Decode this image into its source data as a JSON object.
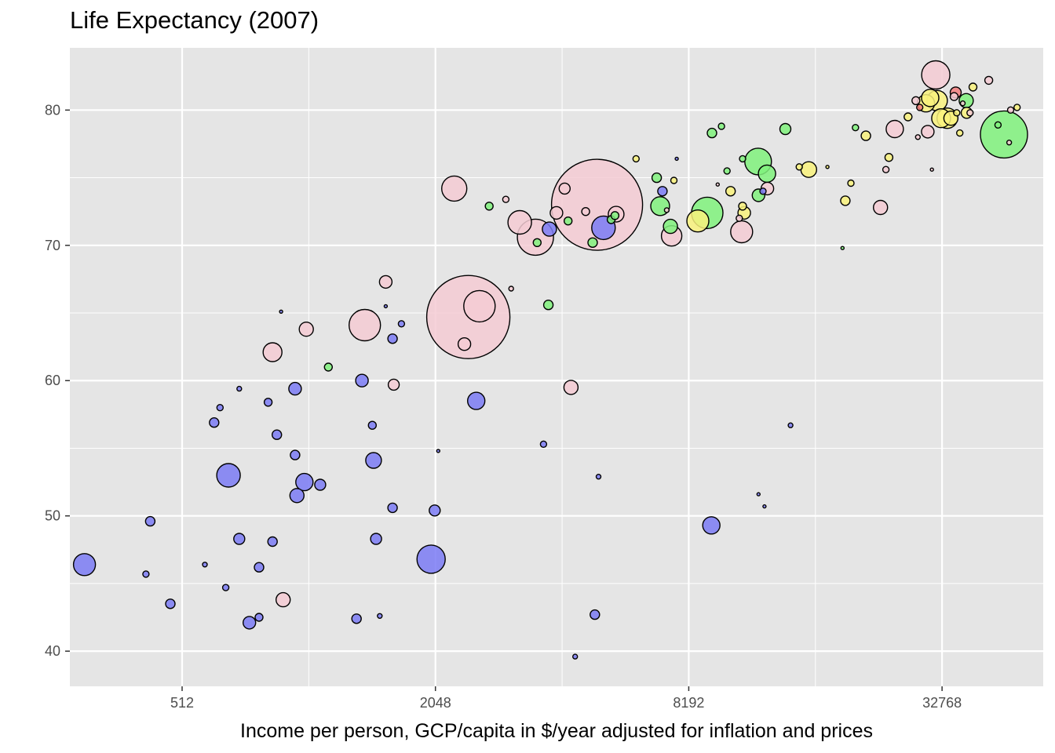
{
  "chart_data": {
    "type": "scatter",
    "title": "Life Expectancy (2007)",
    "xlabel": "Income per person, GCP/capita in $/year adjusted for inflation and prices",
    "ylabel": "",
    "x_scale": "log2",
    "xlim": [
      277,
      57000
    ],
    "ylim": [
      37.4,
      84.6
    ],
    "x_ticks": [
      512,
      2048,
      8192,
      32768
    ],
    "x_tick_labels": [
      "512",
      "2048",
      "8192",
      "32768"
    ],
    "y_ticks": [
      40,
      50,
      60,
      70,
      80
    ],
    "y_tick_labels": [
      "40",
      "50",
      "60",
      "70",
      "80"
    ],
    "grid": true,
    "legend": "none",
    "colors": {
      "panel": "#e5e5e5",
      "grid": "#ffffff",
      "blue": "#7b7bf4",
      "pink": "#f4cbd3",
      "green": "#80f27c",
      "yellow": "#f9f27c",
      "red": "#f27c7c",
      "stroke": "#000000"
    },
    "points": [
      {
        "x": 4959,
        "y": 73.0,
        "r": 58,
        "color": "pink"
      },
      {
        "x": 2452,
        "y": 64.7,
        "r": 53,
        "color": "pink"
      },
      {
        "x": 2606,
        "y": 65.5,
        "r": 20,
        "color": "pink"
      },
      {
        "x": 2270,
        "y": 74.2,
        "r": 16,
        "color": "pink"
      },
      {
        "x": 1391,
        "y": 64.1,
        "r": 20,
        "color": "pink"
      },
      {
        "x": 3249,
        "y": 71.7,
        "r": 15,
        "color": "pink"
      },
      {
        "x": 3540,
        "y": 70.6,
        "r": 23,
        "color": "pink"
      },
      {
        "x": 31656,
        "y": 82.6,
        "r": 18,
        "color": "pink"
      },
      {
        "x": 45981,
        "y": 78.2,
        "r": 30,
        "color": "green"
      },
      {
        "x": 11977,
        "y": 76.2,
        "r": 17,
        "color": "green"
      },
      {
        "x": 9066,
        "y": 72.4,
        "r": 20,
        "color": "green"
      },
      {
        "x": 7006,
        "y": 72.9,
        "r": 12,
        "color": "green"
      },
      {
        "x": 8610,
        "y": 71.8,
        "r": 14,
        "color": "yellow"
      },
      {
        "x": 12569,
        "y": 75.3,
        "r": 11,
        "color": "green"
      },
      {
        "x": 10943,
        "y": 71.0,
        "r": 14,
        "color": "pink"
      },
      {
        "x": 7458,
        "y": 70.7,
        "r": 13,
        "color": "pink"
      },
      {
        "x": 5137,
        "y": 71.3,
        "r": 15,
        "color": "blue"
      },
      {
        "x": 5505,
        "y": 72.3,
        "r": 10,
        "color": "pink"
      },
      {
        "x": 4153,
        "y": 74.2,
        "r": 7,
        "color": "pink"
      },
      {
        "x": 3822,
        "y": 71.2,
        "r": 9,
        "color": "blue"
      },
      {
        "x": 3971,
        "y": 72.4,
        "r": 8,
        "color": "pink"
      },
      {
        "x": 4660,
        "y": 72.5,
        "r": 5,
        "color": "pink"
      },
      {
        "x": 4232,
        "y": 71.8,
        "r": 5,
        "color": "green"
      },
      {
        "x": 4841,
        "y": 70.2,
        "r": 6,
        "color": "green"
      },
      {
        "x": 3574,
        "y": 70.2,
        "r": 5,
        "color": "green"
      },
      {
        "x": 2749,
        "y": 72.9,
        "r": 5,
        "color": "green"
      },
      {
        "x": 3010,
        "y": 73.4,
        "r": 4,
        "color": "pink"
      },
      {
        "x": 5359,
        "y": 71.9,
        "r": 5,
        "color": "green"
      },
      {
        "x": 5470,
        "y": 72.2,
        "r": 5,
        "color": "green"
      },
      {
        "x": 6875,
        "y": 75.0,
        "r": 6,
        "color": "green"
      },
      {
        "x": 7093,
        "y": 74.0,
        "r": 6,
        "color": "blue"
      },
      {
        "x": 7410,
        "y": 71.4,
        "r": 9,
        "color": "green"
      },
      {
        "x": 7553,
        "y": 74.8,
        "r": 4,
        "color": "yellow"
      },
      {
        "x": 7670,
        "y": 76.4,
        "r": 2,
        "color": "blue"
      },
      {
        "x": 6140,
        "y": 76.4,
        "r": 4,
        "color": "yellow"
      },
      {
        "x": 7262,
        "y": 72.6,
        "r": 3,
        "color": "pink"
      },
      {
        "x": 9300,
        "y": 78.3,
        "r": 6,
        "color": "green"
      },
      {
        "x": 9800,
        "y": 78.8,
        "r": 4,
        "color": "green"
      },
      {
        "x": 9600,
        "y": 74.5,
        "r": 2,
        "color": "pink"
      },
      {
        "x": 10100,
        "y": 75.5,
        "r": 4,
        "color": "green"
      },
      {
        "x": 11000,
        "y": 76.4,
        "r": 4,
        "color": "green"
      },
      {
        "x": 10300,
        "y": 74.0,
        "r": 6,
        "color": "yellow"
      },
      {
        "x": 11000,
        "y": 72.9,
        "r": 5,
        "color": "yellow"
      },
      {
        "x": 11100,
        "y": 72.4,
        "r": 8,
        "color": "yellow"
      },
      {
        "x": 10800,
        "y": 72.0,
        "r": 4,
        "color": "pink"
      },
      {
        "x": 12000,
        "y": 73.7,
        "r": 8,
        "color": "green"
      },
      {
        "x": 12600,
        "y": 74.2,
        "r": 8,
        "color": "pink"
      },
      {
        "x": 12300,
        "y": 74.0,
        "r": 4,
        "color": "blue"
      },
      {
        "x": 13900,
        "y": 78.6,
        "r": 7,
        "color": "green"
      },
      {
        "x": 15000,
        "y": 75.8,
        "r": 4,
        "color": "yellow"
      },
      {
        "x": 15800,
        "y": 75.6,
        "r": 10,
        "color": "yellow"
      },
      {
        "x": 17500,
        "y": 75.8,
        "r": 2,
        "color": "yellow"
      },
      {
        "x": 19300,
        "y": 73.3,
        "r": 6,
        "color": "yellow"
      },
      {
        "x": 19900,
        "y": 74.6,
        "r": 4,
        "color": "yellow"
      },
      {
        "x": 20400,
        "y": 78.7,
        "r": 4,
        "color": "green"
      },
      {
        "x": 21600,
        "y": 78.1,
        "r": 6,
        "color": "yellow"
      },
      {
        "x": 23400,
        "y": 72.8,
        "r": 9,
        "color": "pink"
      },
      {
        "x": 24100,
        "y": 75.6,
        "r": 4,
        "color": "pink"
      },
      {
        "x": 24500,
        "y": 76.5,
        "r": 5,
        "color": "yellow"
      },
      {
        "x": 25300,
        "y": 78.6,
        "r": 11,
        "color": "pink"
      },
      {
        "x": 27200,
        "y": 79.5,
        "r": 5,
        "color": "yellow"
      },
      {
        "x": 28400,
        "y": 80.7,
        "r": 5,
        "color": "pink"
      },
      {
        "x": 29000,
        "y": 80.2,
        "r": 4,
        "color": "red"
      },
      {
        "x": 28700,
        "y": 78.0,
        "r": 3,
        "color": "pink"
      },
      {
        "x": 30300,
        "y": 78.4,
        "r": 8,
        "color": "pink"
      },
      {
        "x": 30000,
        "y": 80.5,
        "r": 11,
        "color": "yellow"
      },
      {
        "x": 30700,
        "y": 80.9,
        "r": 11,
        "color": "yellow"
      },
      {
        "x": 31900,
        "y": 80.7,
        "r": 13,
        "color": "yellow"
      },
      {
        "x": 31000,
        "y": 75.6,
        "r": 2,
        "color": "pink"
      },
      {
        "x": 32600,
        "y": 79.4,
        "r": 12,
        "color": "yellow"
      },
      {
        "x": 33700,
        "y": 79.4,
        "r": 13,
        "color": "yellow"
      },
      {
        "x": 34400,
        "y": 79.4,
        "r": 9,
        "color": "yellow"
      },
      {
        "x": 35000,
        "y": 81.0,
        "r": 5,
        "color": "pink"
      },
      {
        "x": 35300,
        "y": 81.3,
        "r": 7,
        "color": "red"
      },
      {
        "x": 35500,
        "y": 79.8,
        "r": 4,
        "color": "yellow"
      },
      {
        "x": 36100,
        "y": 78.3,
        "r": 4,
        "color": "yellow"
      },
      {
        "x": 36700,
        "y": 80.5,
        "r": 3,
        "color": "pink"
      },
      {
        "x": 37400,
        "y": 80.7,
        "r": 9,
        "color": "green"
      },
      {
        "x": 37500,
        "y": 79.8,
        "r": 7,
        "color": "yellow"
      },
      {
        "x": 38200,
        "y": 79.8,
        "r": 4,
        "color": "pink"
      },
      {
        "x": 38800,
        "y": 81.7,
        "r": 5,
        "color": "yellow"
      },
      {
        "x": 42300,
        "y": 82.2,
        "r": 5,
        "color": "pink"
      },
      {
        "x": 44500,
        "y": 78.9,
        "r": 4,
        "color": "green"
      },
      {
        "x": 47300,
        "y": 77.6,
        "r": 3,
        "color": "pink"
      },
      {
        "x": 47700,
        "y": 80.0,
        "r": 4,
        "color": "pink"
      },
      {
        "x": 49400,
        "y": 80.2,
        "r": 4,
        "color": "yellow"
      },
      {
        "x": 19000,
        "y": 69.8,
        "r": 2,
        "color": "green"
      },
      {
        "x": 14300,
        "y": 56.7,
        "r": 3,
        "color": "blue"
      },
      {
        "x": 9270,
        "y": 49.3,
        "r": 11,
        "color": "blue"
      },
      {
        "x": 12000,
        "y": 51.6,
        "r": 2,
        "color": "blue"
      },
      {
        "x": 12400,
        "y": 50.7,
        "r": 2,
        "color": "blue"
      },
      {
        "x": 5000,
        "y": 52.9,
        "r": 3,
        "color": "blue"
      },
      {
        "x": 4900,
        "y": 42.7,
        "r": 6,
        "color": "blue"
      },
      {
        "x": 4400,
        "y": 39.6,
        "r": 3,
        "color": "blue"
      },
      {
        "x": 4300,
        "y": 59.5,
        "r": 9,
        "color": "pink"
      },
      {
        "x": 3700,
        "y": 55.3,
        "r": 4,
        "color": "blue"
      },
      {
        "x": 3800,
        "y": 65.6,
        "r": 6,
        "color": "green"
      },
      {
        "x": 3100,
        "y": 66.8,
        "r": 3,
        "color": "pink"
      },
      {
        "x": 2560,
        "y": 58.5,
        "r": 11,
        "color": "blue"
      },
      {
        "x": 2400,
        "y": 62.7,
        "r": 8,
        "color": "pink"
      },
      {
        "x": 2080,
        "y": 54.8,
        "r": 2,
        "color": "blue"
      },
      {
        "x": 2040,
        "y": 50.4,
        "r": 7,
        "color": "blue"
      },
      {
        "x": 2000,
        "y": 46.8,
        "r": 18,
        "color": "blue"
      },
      {
        "x": 1630,
        "y": 59.7,
        "r": 7,
        "color": "pink"
      },
      {
        "x": 1620,
        "y": 63.1,
        "r": 6,
        "color": "blue"
      },
      {
        "x": 1700,
        "y": 64.2,
        "r": 4,
        "color": "blue"
      },
      {
        "x": 1560,
        "y": 67.3,
        "r": 8,
        "color": "pink"
      },
      {
        "x": 1560,
        "y": 65.5,
        "r": 2,
        "color": "blue"
      },
      {
        "x": 1620,
        "y": 50.6,
        "r": 6,
        "color": "blue"
      },
      {
        "x": 1480,
        "y": 48.3,
        "r": 7,
        "color": "blue"
      },
      {
        "x": 1510,
        "y": 42.6,
        "r": 3,
        "color": "blue"
      },
      {
        "x": 1450,
        "y": 56.7,
        "r": 5,
        "color": "blue"
      },
      {
        "x": 1460,
        "y": 54.1,
        "r": 10,
        "color": "blue"
      },
      {
        "x": 1370,
        "y": 60.0,
        "r": 8,
        "color": "blue"
      },
      {
        "x": 1330,
        "y": 42.4,
        "r": 6,
        "color": "blue"
      },
      {
        "x": 1140,
        "y": 61.0,
        "r": 5,
        "color": "green"
      },
      {
        "x": 1090,
        "y": 52.3,
        "r": 7,
        "color": "blue"
      },
      {
        "x": 1000,
        "y": 52.5,
        "r": 11,
        "color": "blue"
      },
      {
        "x": 1010,
        "y": 63.8,
        "r": 9,
        "color": "pink"
      },
      {
        "x": 960,
        "y": 51.5,
        "r": 9,
        "color": "blue"
      },
      {
        "x": 950,
        "y": 54.5,
        "r": 6,
        "color": "blue"
      },
      {
        "x": 950,
        "y": 59.4,
        "r": 8,
        "color": "blue"
      },
      {
        "x": 880,
        "y": 65.1,
        "r": 2,
        "color": "blue"
      },
      {
        "x": 860,
        "y": 56.0,
        "r": 6,
        "color": "blue"
      },
      {
        "x": 840,
        "y": 62.1,
        "r": 12,
        "color": "pink"
      },
      {
        "x": 890,
        "y": 43.8,
        "r": 9,
        "color": "pink"
      },
      {
        "x": 820,
        "y": 58.4,
        "r": 5,
        "color": "blue"
      },
      {
        "x": 840,
        "y": 48.1,
        "r": 6,
        "color": "blue"
      },
      {
        "x": 780,
        "y": 46.2,
        "r": 6,
        "color": "blue"
      },
      {
        "x": 780,
        "y": 42.5,
        "r": 5,
        "color": "blue"
      },
      {
        "x": 740,
        "y": 42.1,
        "r": 8,
        "color": "blue"
      },
      {
        "x": 700,
        "y": 59.4,
        "r": 3,
        "color": "blue"
      },
      {
        "x": 700,
        "y": 48.3,
        "r": 7,
        "color": "blue"
      },
      {
        "x": 660,
        "y": 53.0,
        "r": 15,
        "color": "blue"
      },
      {
        "x": 650,
        "y": 44.7,
        "r": 4,
        "color": "blue"
      },
      {
        "x": 630,
        "y": 58.0,
        "r": 4,
        "color": "blue"
      },
      {
        "x": 610,
        "y": 56.9,
        "r": 6,
        "color": "blue"
      },
      {
        "x": 580,
        "y": 46.4,
        "r": 3,
        "color": "blue"
      },
      {
        "x": 480,
        "y": 43.5,
        "r": 6,
        "color": "blue"
      },
      {
        "x": 430,
        "y": 49.6,
        "r": 6,
        "color": "blue"
      },
      {
        "x": 420,
        "y": 45.7,
        "r": 4,
        "color": "blue"
      },
      {
        "x": 300,
        "y": 46.4,
        "r": 14,
        "color": "blue"
      }
    ]
  }
}
